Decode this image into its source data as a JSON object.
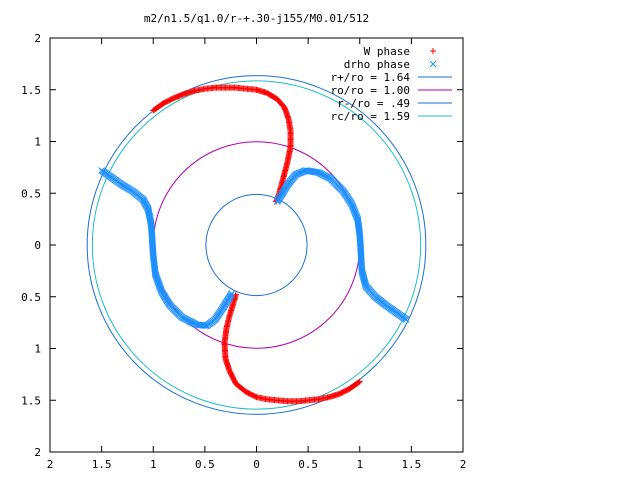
{
  "chart_data": {
    "type": "scatter",
    "title": "m2/n1.5/q1.0/r-+.30-j155/M0.01/512",
    "xlabel": "",
    "ylabel": "",
    "xlim": [
      -2,
      2
    ],
    "ylim": [
      -2,
      2
    ],
    "x_ticks": [
      -2,
      -1.5,
      -1,
      -0.5,
      0,
      0.5,
      1,
      1.5,
      2
    ],
    "x_tick_labels": [
      "2",
      "1.5",
      "1",
      "0.5",
      "0",
      "0.5",
      "1",
      "1.5",
      "2"
    ],
    "y_ticks": [
      2,
      1.5,
      1,
      0.5,
      0,
      -0.5,
      -1,
      -1.5,
      -2
    ],
    "y_tick_labels": [
      "2",
      "1.5",
      "1",
      "0.5",
      "0",
      "0.5",
      "1",
      "1.5",
      "2"
    ],
    "grid": false,
    "legend_position": "top-right",
    "series": [
      {
        "name": "W phase",
        "marker": "plus",
        "color": "#ff0000",
        "arm1": [
          [
            -1.0,
            1.3
          ],
          [
            -0.9,
            1.37
          ],
          [
            -0.8,
            1.42
          ],
          [
            -0.7,
            1.46
          ],
          [
            -0.6,
            1.49
          ],
          [
            -0.5,
            1.51
          ],
          [
            -0.4,
            1.52
          ],
          [
            -0.3,
            1.52
          ],
          [
            -0.2,
            1.52
          ],
          [
            -0.1,
            1.51
          ],
          [
            0.0,
            1.5
          ],
          [
            0.1,
            1.47
          ],
          [
            0.2,
            1.41
          ],
          [
            0.27,
            1.33
          ],
          [
            0.31,
            1.22
          ],
          [
            0.33,
            1.1
          ],
          [
            0.33,
            0.95
          ],
          [
            0.3,
            0.8
          ],
          [
            0.26,
            0.65
          ],
          [
            0.22,
            0.5
          ],
          [
            0.19,
            0.42
          ]
        ],
        "arm2": [
          [
            1.0,
            -1.32
          ],
          [
            0.9,
            -1.39
          ],
          [
            0.8,
            -1.44
          ],
          [
            0.7,
            -1.47
          ],
          [
            0.6,
            -1.49
          ],
          [
            0.5,
            -1.5
          ],
          [
            0.4,
            -1.51
          ],
          [
            0.3,
            -1.51
          ],
          [
            0.2,
            -1.5
          ],
          [
            0.1,
            -1.49
          ],
          [
            0.0,
            -1.47
          ],
          [
            -0.1,
            -1.42
          ],
          [
            -0.2,
            -1.34
          ],
          [
            -0.26,
            -1.22
          ],
          [
            -0.3,
            -1.1
          ],
          [
            -0.31,
            -0.95
          ],
          [
            -0.29,
            -0.8
          ],
          [
            -0.26,
            -0.68
          ],
          [
            -0.22,
            -0.55
          ],
          [
            -0.2,
            -0.48
          ]
        ]
      },
      {
        "name": "drho phase",
        "marker": "cross",
        "color": "#1e90ff",
        "arm1": [
          [
            -1.5,
            0.72
          ],
          [
            -1.4,
            0.65
          ],
          [
            -1.3,
            0.58
          ],
          [
            -1.2,
            0.52
          ],
          [
            -1.1,
            0.44
          ],
          [
            -1.05,
            0.35
          ],
          [
            -1.02,
            0.2
          ],
          [
            -1.01,
            0.05
          ],
          [
            -1.0,
            -0.1
          ],
          [
            -0.98,
            -0.28
          ],
          [
            -0.92,
            -0.45
          ],
          [
            -0.84,
            -0.58
          ],
          [
            -0.72,
            -0.7
          ],
          [
            -0.58,
            -0.77
          ],
          [
            -0.48,
            -0.78
          ],
          [
            -0.4,
            -0.72
          ],
          [
            -0.32,
            -0.6
          ],
          [
            -0.24,
            -0.47
          ]
        ],
        "arm2": [
          [
            1.45,
            -0.72
          ],
          [
            1.35,
            -0.65
          ],
          [
            1.25,
            -0.58
          ],
          [
            1.15,
            -0.5
          ],
          [
            1.06,
            -0.4
          ],
          [
            1.02,
            -0.25
          ],
          [
            1.01,
            -0.05
          ],
          [
            1.0,
            0.1
          ],
          [
            0.98,
            0.25
          ],
          [
            0.92,
            0.4
          ],
          [
            0.84,
            0.52
          ],
          [
            0.72,
            0.64
          ],
          [
            0.6,
            0.7
          ],
          [
            0.48,
            0.72
          ],
          [
            0.38,
            0.68
          ],
          [
            0.3,
            0.58
          ],
          [
            0.24,
            0.48
          ],
          [
            0.2,
            0.42
          ]
        ]
      }
    ],
    "circles": [
      {
        "name": "r+/ro = 1.64",
        "label": "r+/ro = 1.64",
        "radius": 1.64,
        "color": "#1b6fd6"
      },
      {
        "name": "ro/ro = 1.00",
        "label": "ro/ro = 1.00",
        "radius": 1.0,
        "color": "#b000b0"
      },
      {
        "name": "r-/ro = .49",
        "label": "r-/ro = .49",
        "radius": 0.49,
        "color": "#1b6fd6"
      },
      {
        "name": "rc/ro = 1.59",
        "label": "rc/ro = 1.59",
        "radius": 1.59,
        "color": "#20c0c0"
      }
    ]
  }
}
